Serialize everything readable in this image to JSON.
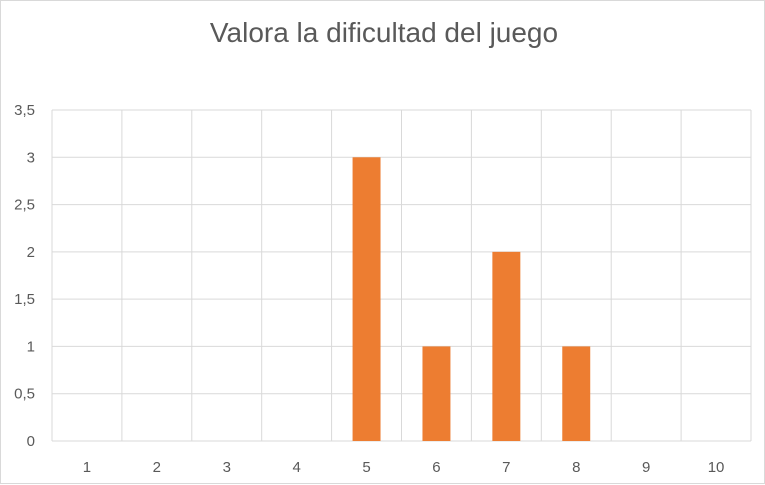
{
  "chart_data": {
    "type": "bar",
    "title": "Valora la dificultad del juego",
    "xlabel": "",
    "ylabel": "",
    "categories": [
      "1",
      "2",
      "3",
      "4",
      "5",
      "6",
      "7",
      "8",
      "9",
      "10"
    ],
    "values": [
      0,
      0,
      0,
      0,
      3,
      1,
      2,
      1,
      0,
      0
    ],
    "ylim": [
      0,
      3.5
    ],
    "y_ticks": [
      "0",
      "0,5",
      "1",
      "1,5",
      "2",
      "2,5",
      "3",
      "3,5"
    ],
    "grid": "on",
    "legend": "none",
    "bar_color": "#ED7D31",
    "grid_color": "#D9D9D9"
  }
}
